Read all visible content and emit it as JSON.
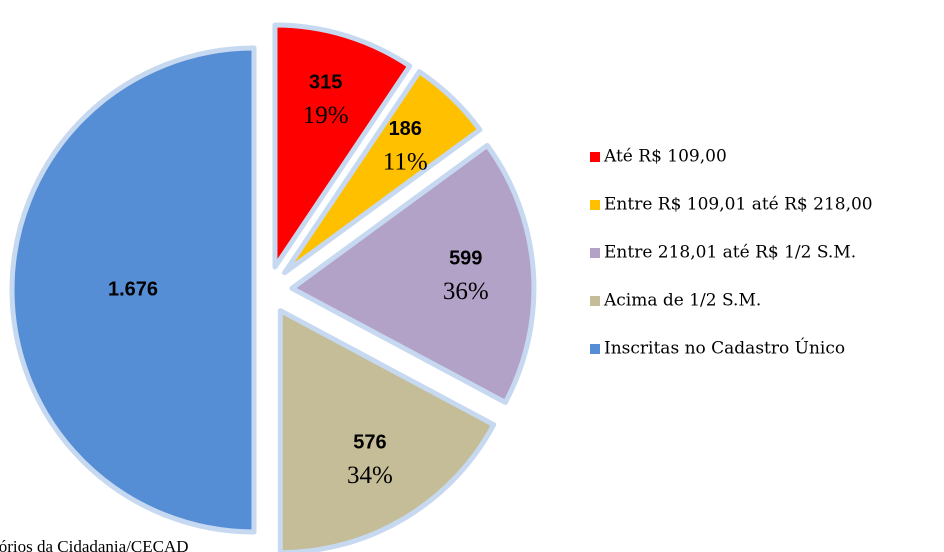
{
  "chart_data": {
    "type": "pie",
    "categories": [
      "Até R$ 109,00",
      "Entre R$ 109,01 até R$ 218,00",
      "Entre 218,01 até R$ 1/2 S.M.",
      "Acima de 1/2 S.M.",
      "Inscritas no Cadastro Único"
    ],
    "values": [
      315,
      186,
      599,
      576,
      1676
    ],
    "value_labels": [
      "315",
      "186",
      "599",
      "576",
      "1.676"
    ],
    "percent_labels": [
      "19%",
      "11%",
      "36%",
      "34%",
      null
    ],
    "colors": [
      "#ff0000",
      "#ffc000",
      "#b3a2c7",
      "#c4bd97",
      "#558ed5"
    ],
    "legend": "right",
    "source": "tórios da Cidadania/CECAD"
  }
}
